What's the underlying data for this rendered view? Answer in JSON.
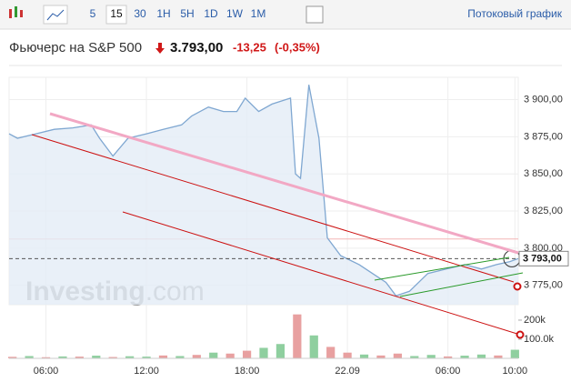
{
  "toolbar": {
    "intervals": [
      "5",
      "15",
      "30",
      "1H",
      "5H",
      "1D",
      "1W",
      "1M"
    ],
    "active": 1,
    "stream_link": "Потоковый график"
  },
  "header": {
    "name": "Фьючерс на S&P 500",
    "price": "3.793,00",
    "change": "-13,25",
    "change_pct": "(-0,35%)"
  },
  "chart_data": {
    "type": "line",
    "x": [
      3.8,
      4.3,
      5.4,
      6.5,
      7.6,
      8.7,
      9.2,
      10.0,
      10.9,
      12.0,
      13.0,
      14.1,
      14.7,
      15.7,
      16.6,
      17.4,
      17.9,
      18.7,
      19.5,
      20.6,
      20.9,
      21.2,
      21.7,
      22.3,
      22.8,
      23.6,
      24.7,
      25.5,
      26.3,
      26.9,
      27.7,
      28.8,
      29.9,
      31.0,
      32.0,
      32.9,
      33.7,
      34.2
    ],
    "series": [
      {
        "color": "#7fa7d1",
        "fill": "#e3ecf6",
        "values": [
          3877,
          3874,
          3877,
          3880,
          3881,
          3883,
          3874,
          3862,
          3874,
          3877,
          3880,
          3883,
          3889,
          3895,
          3892,
          3892,
          3901,
          3892,
          3897,
          3901,
          3850,
          3847,
          3910,
          3874,
          3807,
          3795,
          3789,
          3783,
          3777,
          3768,
          3771,
          3783,
          3786,
          3789,
          3786,
          3789,
          3791,
          3793
        ]
      }
    ],
    "xlim": [
      3.8,
      34.2
    ],
    "xticks": [
      {
        "value": 6,
        "label": "06:00"
      },
      {
        "value": 12,
        "label": "12:00"
      },
      {
        "value": 18,
        "label": "18:00"
      },
      {
        "value": 24,
        "label": "22.09"
      },
      {
        "value": 30,
        "label": "06:00"
      },
      {
        "value": 34,
        "label": "10:00"
      }
    ],
    "ylim": [
      3762,
      3915
    ],
    "yticks": [
      {
        "value": 3775,
        "label": "3 775,00"
      },
      {
        "value": 3800,
        "label": "3 800,00"
      },
      {
        "value": 3825,
        "label": "3 825,00"
      },
      {
        "value": 3850,
        "label": "3 850,00"
      },
      {
        "value": 3875,
        "label": "3 875,00"
      },
      {
        "value": 3900,
        "label": "3 900,00"
      }
    ],
    "grid": true,
    "prev_close": 3806.25,
    "last": {
      "value": 3793,
      "label": "3 793,00"
    },
    "volume": {
      "x": [
        4,
        5,
        6,
        7,
        8,
        9,
        10,
        11,
        12,
        13,
        14,
        15,
        16,
        17,
        18,
        19,
        20,
        21,
        22,
        23,
        24,
        25,
        26,
        27,
        28,
        29,
        30,
        31,
        32,
        33,
        34
      ],
      "values": [
        8000,
        12000,
        6000,
        10000,
        9000,
        14000,
        7000,
        11000,
        9000,
        15000,
        12000,
        18000,
        30000,
        25000,
        40000,
        55000,
        75000,
        230000,
        120000,
        60000,
        30000,
        20000,
        15000,
        25000,
        12000,
        18000,
        10000,
        14000,
        20000,
        15000,
        45000
      ],
      "colors": [
        "#e8a0a0",
        "#8fcf9f",
        "#e8a0a0",
        "#8fcf9f",
        "#e8a0a0",
        "#8fcf9f",
        "#e8a0a0",
        "#8fcf9f",
        "#8fcf9f",
        "#e8a0a0",
        "#8fcf9f",
        "#e8a0a0",
        "#8fcf9f",
        "#e8a0a0",
        "#e8a0a0",
        "#8fcf9f",
        "#8fcf9f",
        "#e8a0a0",
        "#8fcf9f",
        "#e8a0a0",
        "#e8a0a0",
        "#8fcf9f",
        "#e8a0a0",
        "#e8a0a0",
        "#8fcf9f",
        "#8fcf9f",
        "#e8a0a0",
        "#8fcf9f",
        "#8fcf9f",
        "#e8a0a0",
        "#8fcf9f"
      ],
      "ylim": [
        0,
        257000
      ],
      "yticks": [
        {
          "value": 100000,
          "label": "100.0k"
        },
        {
          "value": 200000,
          "label": "200k"
        }
      ]
    },
    "watermark": {
      "brand": "Investing",
      "suffix": ".com"
    }
  }
}
